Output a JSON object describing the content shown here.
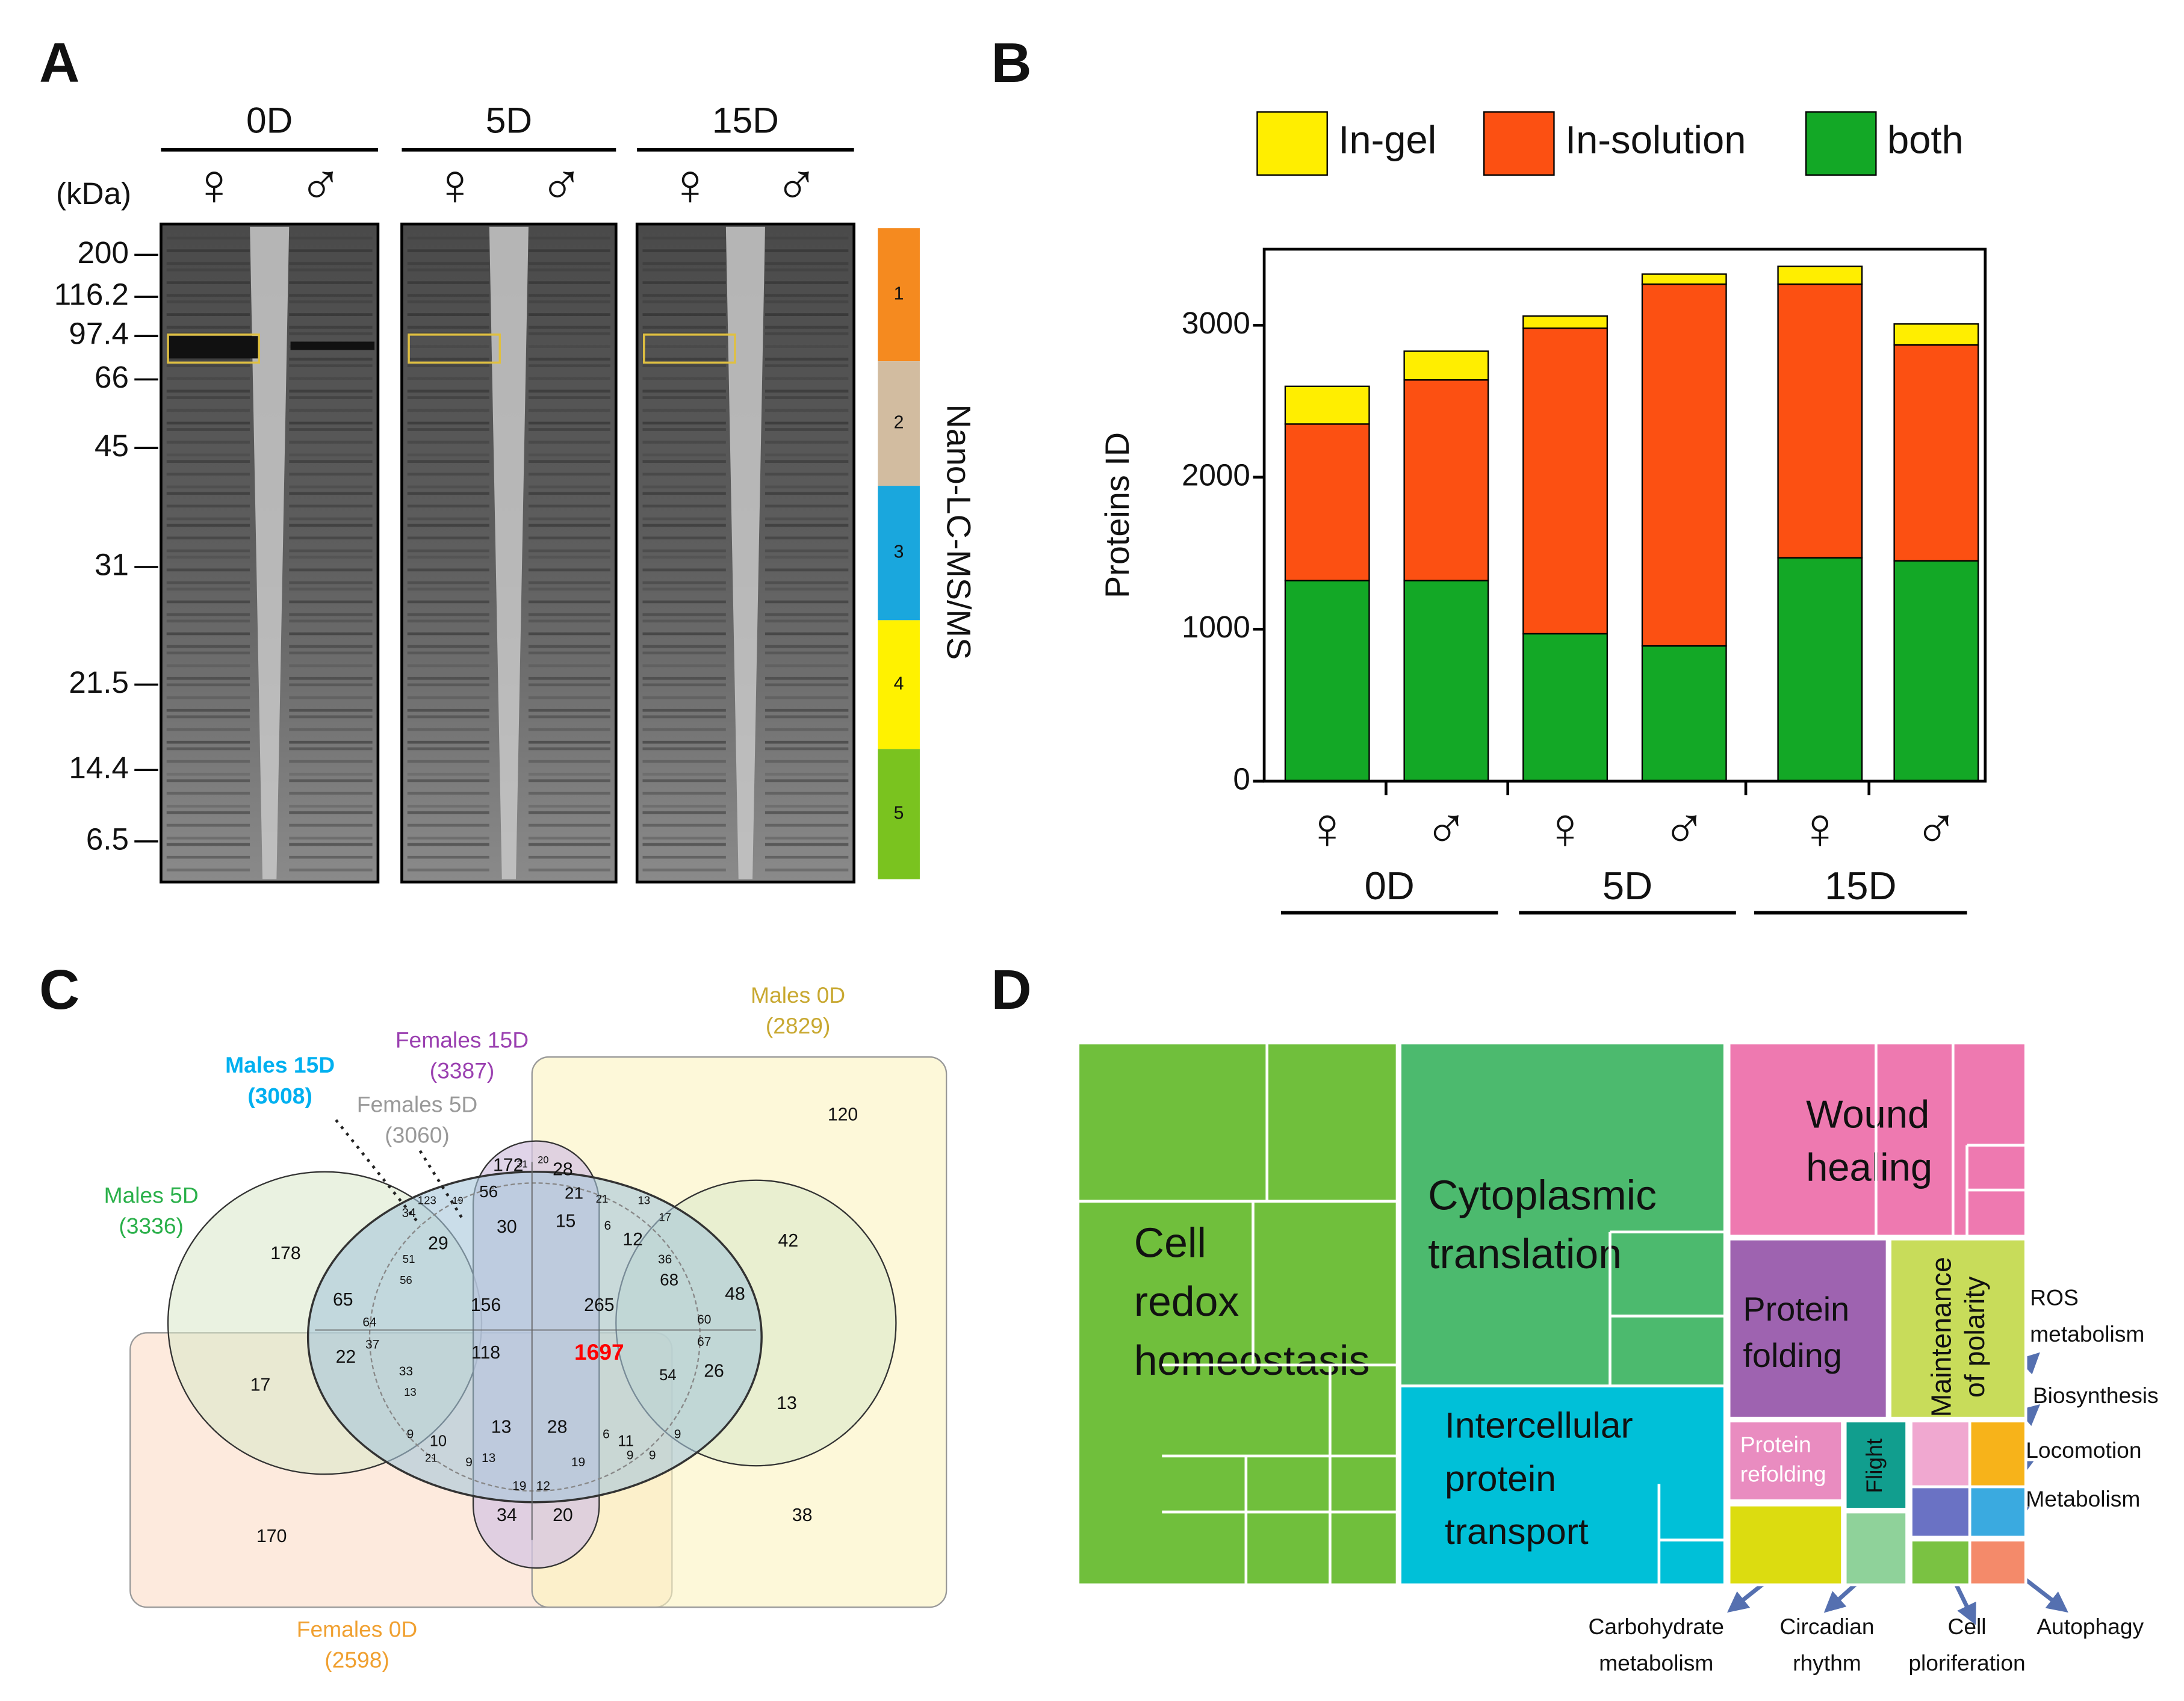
{
  "panel_a": {
    "letter": "A",
    "groups": [
      "0D",
      "5D",
      "15D"
    ],
    "sexes": [
      "♀",
      "♂"
    ],
    "unit": "(kDa)",
    "markers": [
      "200",
      "116.2",
      "97.4",
      "66",
      "45",
      "31",
      "21.5",
      "14.4",
      "6.5"
    ],
    "fractions": [
      "1",
      "2",
      "3",
      "4",
      "5"
    ],
    "fraction_colors": [
      "#f58a1f",
      "#d2bca0",
      "#1aa7dd",
      "#fff200",
      "#7ac31f"
    ],
    "method": "Nano-LC-MS/MS"
  },
  "chart_data": {
    "type": "bar",
    "stacked": true,
    "letter": "B",
    "y_label": "Proteins ID",
    "categories": [
      "♀",
      "♂",
      "♀",
      "♂",
      "♀",
      "♂"
    ],
    "groups": [
      "0D",
      "5D",
      "15D"
    ],
    "series": [
      {
        "name": "In-gel",
        "color": "#ffee00",
        "values": [
          248,
          189,
          80,
          66,
          117,
          138
        ]
      },
      {
        "name": "In-solution",
        "color": "#fc5012",
        "values": [
          1030,
          1320,
          2010,
          2380,
          1800,
          1420
        ]
      },
      {
        "name": "both",
        "color": "#13a826",
        "values": [
          1320,
          1320,
          970,
          890,
          1470,
          1450
        ]
      }
    ],
    "ylim": [
      0,
      3500
    ],
    "yticks": [
      0,
      1000,
      2000,
      3000
    ]
  },
  "venn": {
    "letter": "C",
    "sets": [
      {
        "name": "Males 0D",
        "count": "(2829)",
        "color": "#c8a830"
      },
      {
        "name": "Females 15D",
        "count": "(3387)",
        "color": "#9a3fb0"
      },
      {
        "name": "Males 15D",
        "count": "(3008)",
        "color": "#00b0f0"
      },
      {
        "name": "Females 5D",
        "count": "(3060)",
        "color": "#999999"
      },
      {
        "name": "Males 5D",
        "count": "(3336)",
        "color": "#2ab04a"
      },
      {
        "name": "Females 0D",
        "count": "(2598)",
        "color": "#f0a030"
      }
    ],
    "center": "1697",
    "regions": [
      "120",
      "178",
      "42",
      "156",
      "265",
      "65",
      "48",
      "118",
      "22",
      "26",
      "17",
      "13",
      "172",
      "28",
      "56",
      "30",
      "21",
      "15",
      "29",
      "12",
      "13",
      "28",
      "34",
      "20",
      "170",
      "38",
      "10",
      "11",
      "68",
      "54",
      "34",
      "6",
      "36",
      "64",
      "37",
      "60",
      "67",
      "51",
      "56",
      "33",
      "13",
      "9",
      "21",
      "9",
      "13",
      "19",
      "12",
      "19",
      "6",
      "9",
      "9",
      "9",
      "123",
      "19",
      "31",
      "20",
      "21",
      "13",
      "17"
    ]
  },
  "treemap": {
    "letter": "D",
    "boxes": [
      {
        "label": [
          "Cell",
          "redox",
          "homeostasis"
        ],
        "color": "#70bf3c"
      },
      {
        "label": [
          "Cytoplasmic",
          "translation"
        ],
        "color": "#4cba6e"
      },
      {
        "label": [
          "Intercellular",
          "protein",
          "transport"
        ],
        "color": "#00c0d8"
      },
      {
        "label": [
          "Wound",
          "healing"
        ],
        "color": "#ee79b0"
      },
      {
        "label": [
          "Protein",
          "folding"
        ],
        "color": "#9e63b0"
      },
      {
        "label": [
          "Maintenance",
          "of polarity"
        ],
        "color": "#c8dc5a"
      },
      {
        "label": [
          "Protein",
          "refolding"
        ],
        "color": "#e98cc0"
      },
      {
        "label": [
          "Flight"
        ],
        "color": "#119e8e"
      },
      {
        "label": [],
        "color": "#f0a8d0"
      },
      {
        "label": [],
        "color": "#f7b31a"
      },
      {
        "label": [],
        "color": "#6a72c4"
      },
      {
        "label": [],
        "color": "#3aaae0"
      },
      {
        "label": [],
        "color": "#dcdc10"
      },
      {
        "label": [],
        "color": "#8fd29a"
      },
      {
        "label": [],
        "color": "#7ac242"
      },
      {
        "label": [],
        "color": "#f48a6a"
      }
    ],
    "callouts": [
      [
        "ROS",
        "metabolism"
      ],
      [
        "Biosynthesis"
      ],
      [
        "Locomotion"
      ],
      [
        "Metabolism"
      ],
      [
        "Carbohydrate",
        "metabolism"
      ],
      [
        "Circadian",
        "rhythm"
      ],
      [
        "Cell",
        "ploriferation"
      ],
      [
        "Autophagy"
      ]
    ]
  }
}
